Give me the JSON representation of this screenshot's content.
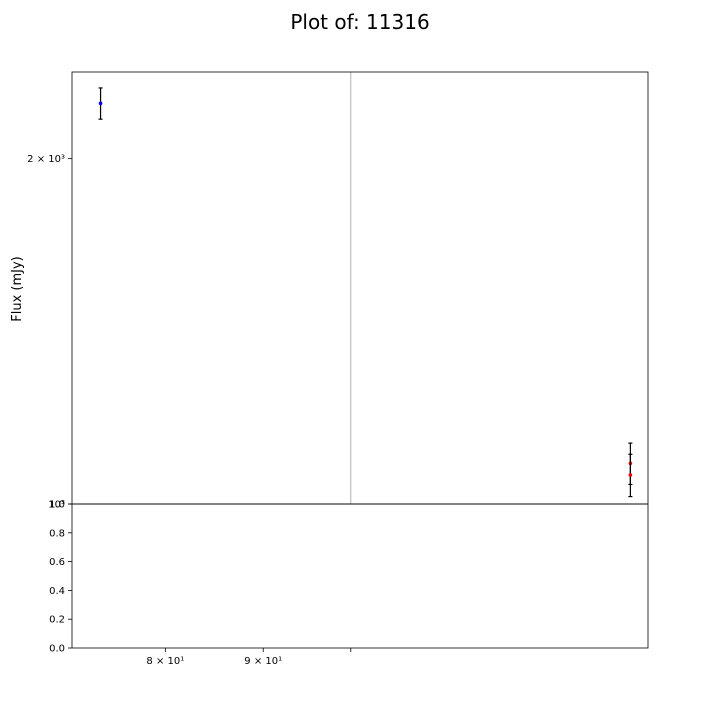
{
  "chart_data": {
    "type": "scatter",
    "title": "Plot of: 11316",
    "xlabel": "",
    "ylabel": "Flux (mJy)",
    "x_scale": "log",
    "y_scale": "log",
    "xlim": [
      71.5,
      143
    ],
    "ylim": [
      1000,
      2380
    ],
    "grid": false,
    "x_tick_labels": [
      "8 × 10¹",
      "9 × 10¹"
    ],
    "x_tick_values": [
      80,
      90
    ],
    "y_tick_labels": [
      "2 × 10³",
      "10³"
    ],
    "y_tick_values": [
      2000,
      1000
    ],
    "vertical_line_x": 100,
    "series": [
      {
        "color": "#0000ff",
        "points": [
          {
            "x": 74,
            "y": 2235,
            "yerr": 70
          }
        ]
      },
      {
        "color": "#ff0000",
        "points": [
          {
            "x": 140,
            "y": 1085,
            "yerr": 45
          },
          {
            "x": 140,
            "y": 1060,
            "yerr": 45
          }
        ]
      }
    ],
    "residual_panel": {
      "ylim": [
        0,
        1
      ],
      "y_tick_labels": [
        "0.0",
        "0.2",
        "0.4",
        "0.6",
        "0.8",
        "1.0"
      ],
      "y_tick_values": [
        0,
        0.2,
        0.4,
        0.6,
        0.8,
        1.0
      ]
    }
  }
}
